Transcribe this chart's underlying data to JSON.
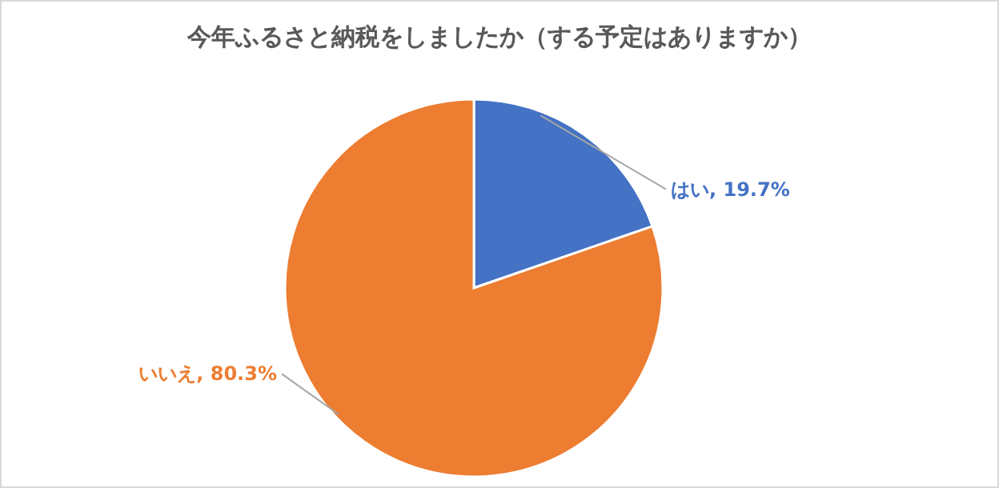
{
  "chart_data": {
    "type": "pie",
    "title": "今年ふるさと納税をしましたか（する予定はありますか）",
    "categories": [
      "はい",
      "いいえ"
    ],
    "values": [
      19.7,
      80.3
    ],
    "colors": [
      "#4472c4",
      "#ed7d31"
    ],
    "value_labels": [
      ", 19.7%",
      ", 80.3%"
    ]
  }
}
